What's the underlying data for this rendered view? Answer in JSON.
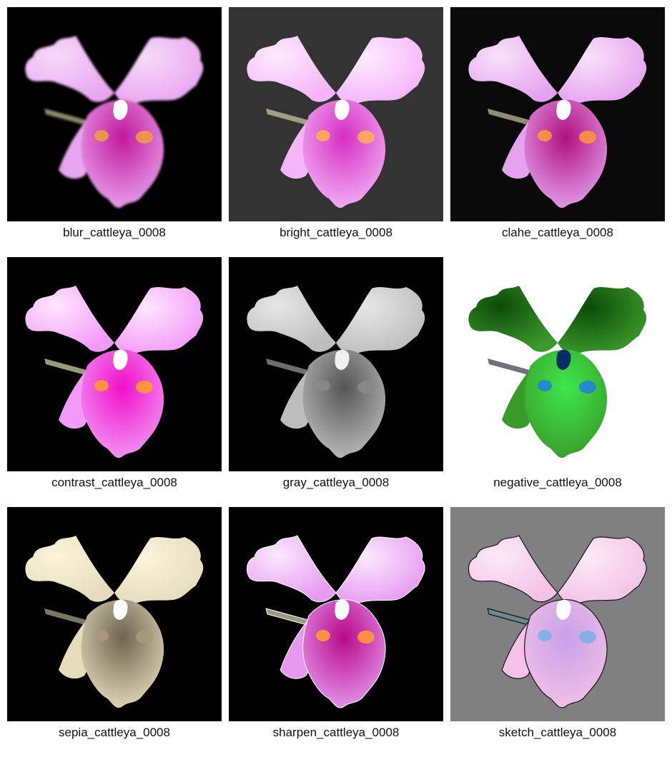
{
  "grid": {
    "tiles": [
      {
        "caption": "blur_cattleya_0008",
        "filter": "blur",
        "bg": "#000000",
        "petal": "#e9a6f0",
        "petal_light": "#f6dafa",
        "lip": "#c2199a",
        "throat": "#f0a040",
        "stem": "#8a8a6a",
        "outline": "none"
      },
      {
        "caption": "bright_cattleya_0008",
        "filter": "bright",
        "bg": "#333333",
        "petal": "#f3b4f8",
        "petal_light": "#ffeaff",
        "lip": "#d52fc0",
        "throat": "#ffb050",
        "stem": "#a0a080",
        "outline": "none"
      },
      {
        "caption": "clahe_cattleya_0008",
        "filter": "clahe",
        "bg": "#0a0a0a",
        "petal": "#e5a2ee",
        "petal_light": "#f8e2fb",
        "lip": "#b0107e",
        "throat": "#ff9a3a",
        "stem": "#8c8c70",
        "outline": "none"
      },
      {
        "caption": "contrast_cattleya_0008",
        "filter": "contrast",
        "bg": "#000000",
        "petal": "#f29af7",
        "petal_light": "#ffe6ff",
        "lip": "#f010c8",
        "throat": "#ffa028",
        "stem": "#9a9a78",
        "outline": "none"
      },
      {
        "caption": "gray_cattleya_0008",
        "filter": "gray",
        "bg": "#000000",
        "petal": "#bdbdbd",
        "petal_light": "#e6e6e6",
        "lip": "#555555",
        "throat": "#8a8a8a",
        "stem": "#6e6e6e",
        "outline": "none"
      },
      {
        "caption": "negative_cattleya_0008",
        "filter": "negative",
        "bg": "#ffffff",
        "petal": "#3a9a2a",
        "petal_light": "#0c4a08",
        "lip": "#3de84a",
        "throat": "#2080e0",
        "stem": "#707080",
        "outline": "none"
      },
      {
        "caption": "sepia_cattleya_0008",
        "filter": "sepia",
        "bg": "#000000",
        "petal": "#e6dcbc",
        "petal_light": "#fbf4dc",
        "lip": "#6e6450",
        "throat": "#a89a7c",
        "stem": "#7e7664",
        "outline": "none"
      },
      {
        "caption": "sharpen_cattleya_0008",
        "filter": "sharpen",
        "bg": "#000000",
        "petal": "#e59af0",
        "petal_light": "#fbe8ff",
        "lip": "#b80a88",
        "throat": "#ffa030",
        "stem": "#9a9a7c",
        "outline": "#ffffff"
      },
      {
        "caption": "sketch_cattleya_0008",
        "filter": "sketch",
        "bg": "#808080",
        "petal": "#f3c2e6",
        "petal_light": "#fbeaf6",
        "lip": "#c8a0e8",
        "throat": "#78b0e8",
        "stem": "#6a8a8a",
        "outline": "#1a1020"
      }
    ]
  }
}
